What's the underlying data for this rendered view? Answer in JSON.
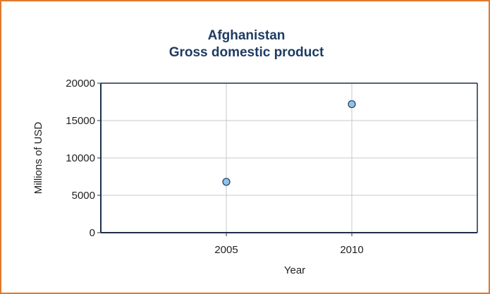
{
  "chart_data": {
    "type": "scatter",
    "title": "Afghanistan",
    "subtitle": "Gross domestic product",
    "xlabel": "Year",
    "ylabel": "Millions of USD",
    "x_ticks": [
      "2005",
      "2010"
    ],
    "y_ticks": [
      "0",
      "5000",
      "10000",
      "15000",
      "20000"
    ],
    "xlim": [
      2000,
      2015
    ],
    "ylim": [
      0,
      20000
    ],
    "grid": true,
    "series": [
      {
        "points": [
          {
            "x": 2005,
            "y": 6800
          },
          {
            "x": 2010,
            "y": 17200
          }
        ]
      }
    ],
    "colors": {
      "marker_fill": "#8ec3e6",
      "marker_stroke": "#1f3b63",
      "grid": "#c8c8c8",
      "axis": "#1f2f4a",
      "border": "#e07a2e",
      "title": "#1f3b63"
    }
  }
}
